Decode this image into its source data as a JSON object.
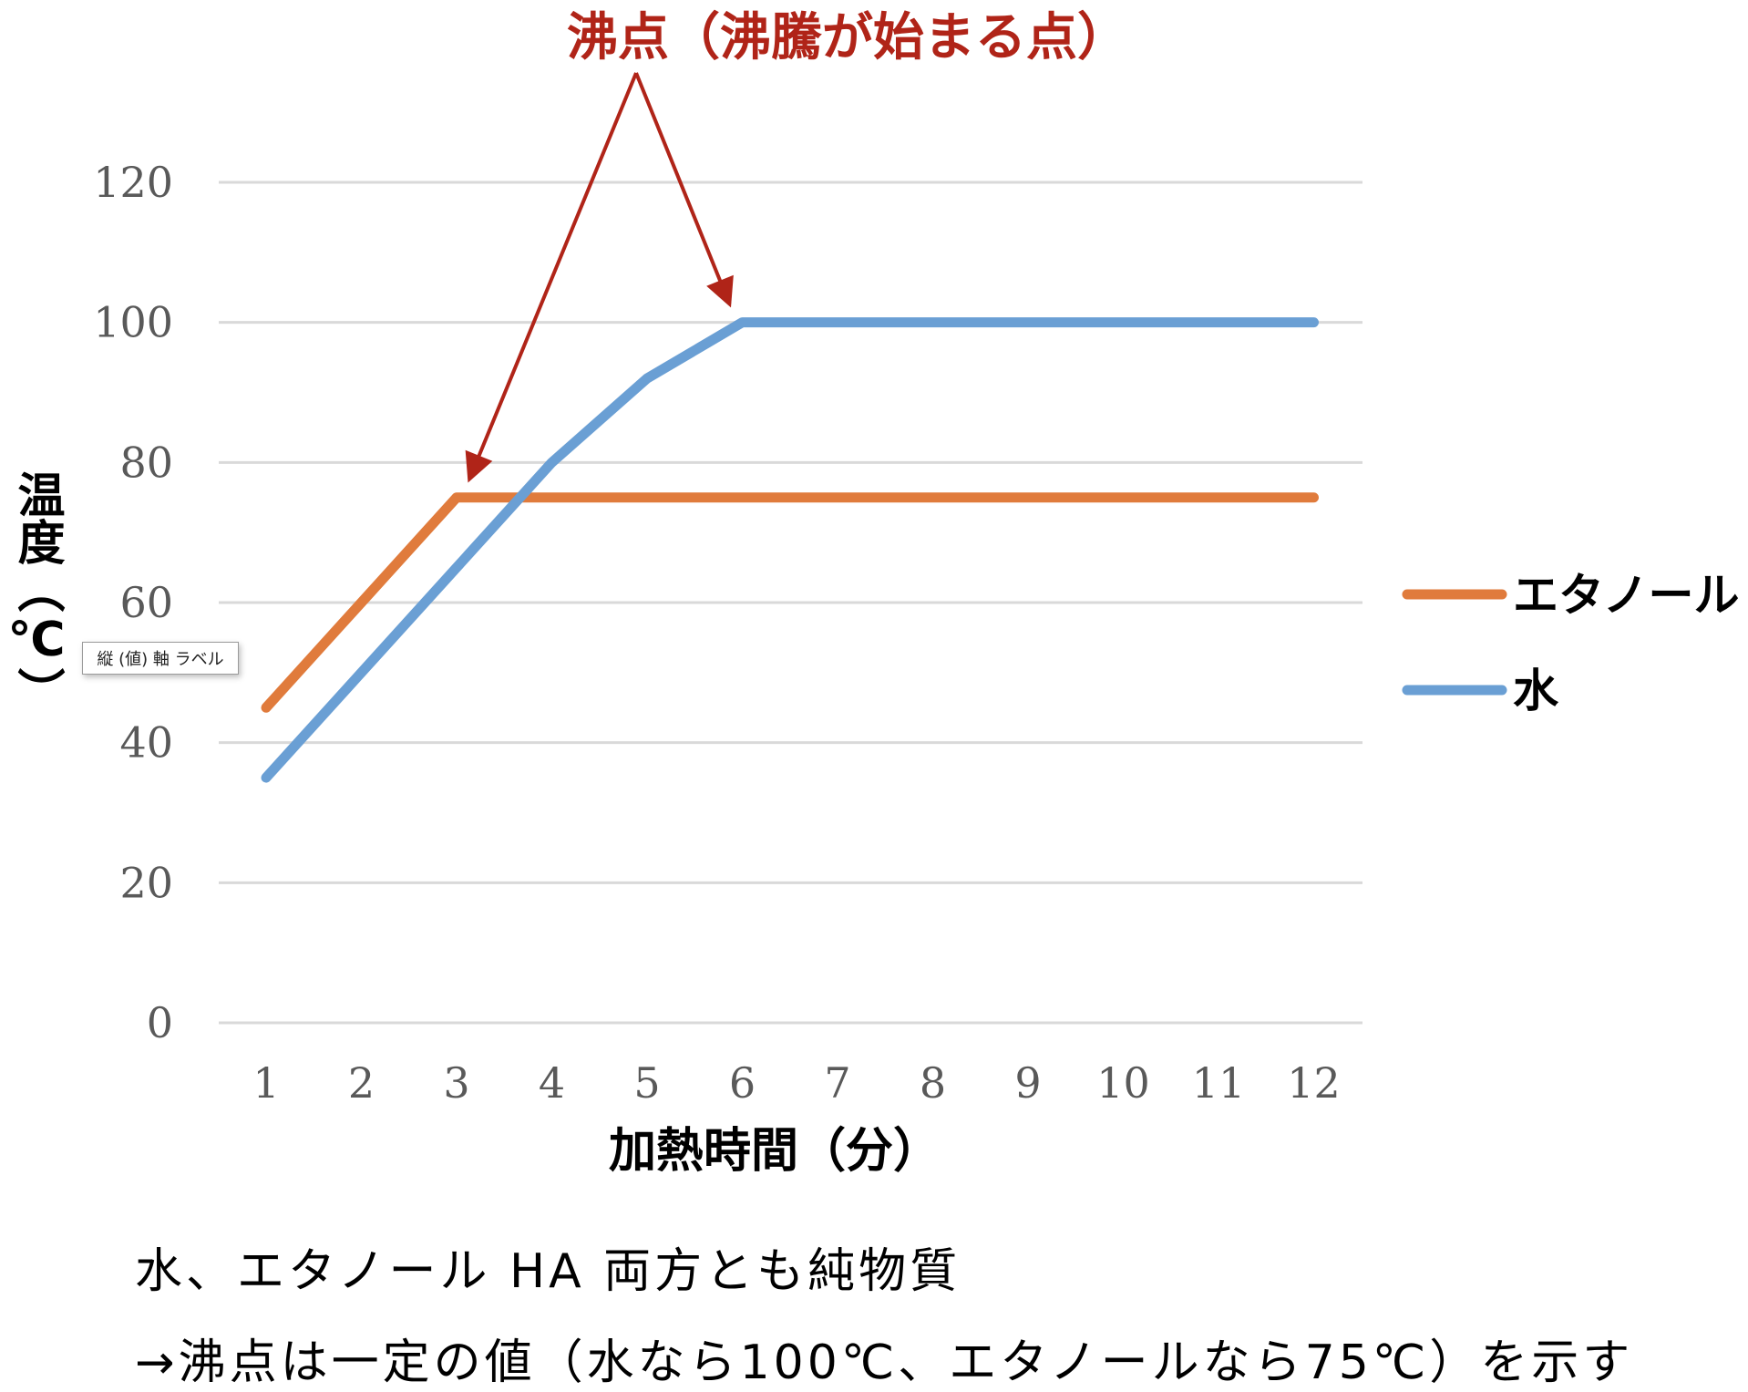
{
  "chart_data": {
    "type": "line",
    "title": "",
    "xlabel": "加熱時間（分）",
    "ylabel": "温度（℃）",
    "categories": [
      "1",
      "2",
      "3",
      "4",
      "5",
      "6",
      "7",
      "8",
      "9",
      "10",
      "11",
      "12"
    ],
    "y_ticks": [
      "0",
      "20",
      "40",
      "60",
      "80",
      "100",
      "120"
    ],
    "ylim": [
      0,
      130
    ],
    "grid": true,
    "legend_position": "right",
    "series": [
      {
        "name": "エタノール",
        "color": "#e07b3c",
        "values": [
          45,
          60,
          75,
          75,
          75,
          75,
          75,
          75,
          75,
          75,
          75,
          75
        ]
      },
      {
        "name": "水",
        "color": "#6a9fd4",
        "values": [
          35,
          50,
          65,
          80,
          92,
          100,
          100,
          100,
          100,
          100,
          100,
          100
        ]
      }
    ],
    "annotation": {
      "text": "沸点（沸騰が始まる点）",
      "color": "#b02418",
      "points_to": [
        {
          "series": "エタノール",
          "x": "3",
          "y": 75
        },
        {
          "series": "水",
          "x": "6",
          "y": 100
        }
      ]
    }
  },
  "tooltip": {
    "text": "縦 (値) 軸 ラベル"
  },
  "notes": [
    "水、エタノール HA 両方とも純物質",
    "→沸点は一定の値（水なら100℃、エタノールなら75℃）を示す"
  ]
}
